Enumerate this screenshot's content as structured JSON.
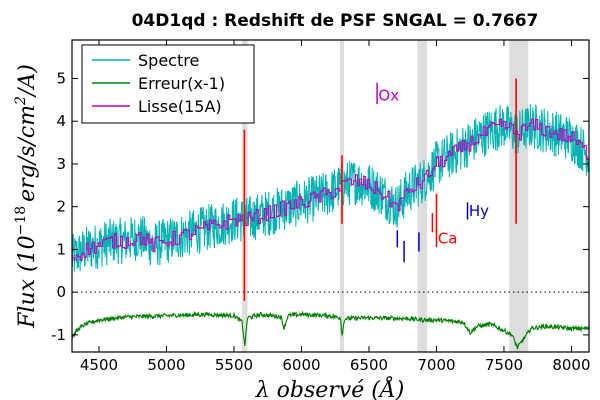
{
  "chart_data": {
    "type": "line",
    "title": "04D1qd : Redshift de PSF SNGAL = 0.7667",
    "xlabel": "λ observé (Å)",
    "ylabel": "Flux (10^-18 erg/s/cm²/A)",
    "ylabel_parts": {
      "prefix": "Flux (10",
      "exponent": "−18",
      "unit": "erg/s/cm",
      "unit_exp": "2",
      "suffix": "/A)"
    },
    "xlim": [
      4300,
      8130
    ],
    "ylim": [
      -1.4,
      5.9
    ],
    "xticks": [
      4500,
      5000,
      5500,
      6000,
      6500,
      7000,
      7500,
      8000
    ],
    "yticks": [
      -1,
      0,
      1,
      2,
      3,
      4,
      5
    ],
    "zero_line": {
      "y": 0,
      "style": "dotted"
    },
    "shaded_bands": [
      [
        5560,
        5600
      ],
      [
        6285,
        6315
      ],
      [
        6860,
        6930
      ],
      [
        7540,
        7680
      ]
    ],
    "legend": {
      "position": "top-left",
      "entries": [
        {
          "name": "Spectre",
          "color": "#00b3b3"
        },
        {
          "name": "Erreur(x-1)",
          "color": "#008000"
        },
        {
          "name": "Lisse(15A)",
          "color": "#c000c0"
        }
      ]
    },
    "series": [
      {
        "name": "Spectre",
        "color": "#00b3b3",
        "x": [
          4300,
          4400,
          4500,
          4600,
          4700,
          4800,
          4900,
          5000,
          5100,
          5200,
          5300,
          5400,
          5500,
          5600,
          5700,
          5800,
          5900,
          6000,
          6100,
          6200,
          6300,
          6400,
          6500,
          6600,
          6700,
          6800,
          6900,
          7000,
          7100,
          7200,
          7300,
          7400,
          7500,
          7600,
          7700,
          7800,
          7900,
          8000,
          8130
        ],
        "y": [
          0.8,
          1.0,
          1.1,
          1.2,
          1.2,
          1.3,
          1.1,
          1.2,
          1.3,
          1.4,
          1.5,
          1.6,
          1.7,
          1.7,
          1.8,
          1.9,
          2.0,
          2.1,
          2.2,
          2.3,
          2.5,
          2.6,
          2.5,
          2.3,
          2.0,
          2.4,
          2.6,
          3.0,
          3.2,
          3.4,
          3.6,
          3.8,
          3.9,
          3.7,
          3.9,
          3.8,
          3.7,
          3.6,
          3.2
        ],
        "noise": 0.55
      },
      {
        "name": "Lisse(15A)",
        "color": "#c000c0",
        "x": [
          4300,
          4400,
          4500,
          4600,
          4700,
          4800,
          4900,
          5000,
          5100,
          5200,
          5300,
          5400,
          5500,
          5600,
          5700,
          5800,
          5900,
          6000,
          6100,
          6200,
          6300,
          6400,
          6500,
          6600,
          6700,
          6800,
          6900,
          7000,
          7100,
          7200,
          7300,
          7400,
          7500,
          7600,
          7700,
          7800,
          7900,
          8000,
          8130
        ],
        "y": [
          0.8,
          1.0,
          1.1,
          1.2,
          1.2,
          1.3,
          1.1,
          1.2,
          1.3,
          1.4,
          1.5,
          1.6,
          1.7,
          1.7,
          1.8,
          1.9,
          2.0,
          2.1,
          2.2,
          2.3,
          2.5,
          2.6,
          2.5,
          2.3,
          2.0,
          2.4,
          2.6,
          3.0,
          3.2,
          3.4,
          3.6,
          3.8,
          3.9,
          3.7,
          3.9,
          3.8,
          3.7,
          3.6,
          3.2
        ],
        "noise": 0.18
      },
      {
        "name": "Erreur(x-1)",
        "color": "#008000",
        "x": [
          4300,
          4350,
          4400,
          4500,
          4700,
          5000,
          5300,
          5500,
          5560,
          5580,
          5600,
          5700,
          5850,
          5870,
          5900,
          6000,
          6200,
          6290,
          6300,
          6320,
          6500,
          6800,
          6900,
          7000,
          7200,
          7250,
          7300,
          7400,
          7500,
          7560,
          7600,
          7700,
          7800,
          7900,
          8000,
          8130
        ],
        "y": [
          -1.05,
          -0.85,
          -0.75,
          -0.65,
          -0.58,
          -0.55,
          -0.52,
          -0.55,
          -0.7,
          -1.25,
          -0.6,
          -0.52,
          -0.58,
          -0.85,
          -0.55,
          -0.52,
          -0.55,
          -0.6,
          -1.0,
          -0.62,
          -0.6,
          -0.62,
          -0.65,
          -0.65,
          -0.7,
          -0.95,
          -0.8,
          -0.75,
          -0.9,
          -1.0,
          -1.3,
          -0.85,
          -0.8,
          -0.82,
          -0.85,
          -0.85
        ],
        "noise": 0.05
      },
      {
        "name": "sky-lines",
        "color": "#ff0000",
        "segments": [
          {
            "x": 5577,
            "y1": -0.2,
            "y2": 3.8
          },
          {
            "x": 6300,
            "y1": 1.6,
            "y2": 3.2
          },
          {
            "x": 7000,
            "y1": 1.4,
            "y2": 2.3
          },
          {
            "x": 7590,
            "y1": 1.6,
            "y2": 5.0
          }
        ]
      }
    ],
    "annotations": [
      {
        "text": "Ox",
        "x": 6570,
        "y": 4.6,
        "color": "#c000c0",
        "marker_x": 6560,
        "marker_y1": 4.4,
        "marker_y2": 4.9
      },
      {
        "text": "Ca",
        "x": 7010,
        "y": 1.25,
        "color": "#ff0000",
        "marker_x": 7000,
        "marker_y1": 1.05,
        "marker_y2": 1.5
      },
      {
        "text": "Hy",
        "x": 7240,
        "y": 1.9,
        "color": "#0000cc",
        "marker_x": 7230,
        "marker_y1": 1.7,
        "marker_y2": 2.1
      }
    ],
    "line_markers": [
      {
        "x": 6710,
        "y1": 1.05,
        "y2": 1.45,
        "color": "#0000cc"
      },
      {
        "x": 6760,
        "y1": 0.7,
        "y2": 1.2,
        "color": "#0000cc"
      },
      {
        "x": 6870,
        "y1": 0.95,
        "y2": 1.4,
        "color": "#0000cc"
      },
      {
        "x": 6970,
        "y1": 1.4,
        "y2": 1.85,
        "color": "#ff0000"
      }
    ]
  }
}
